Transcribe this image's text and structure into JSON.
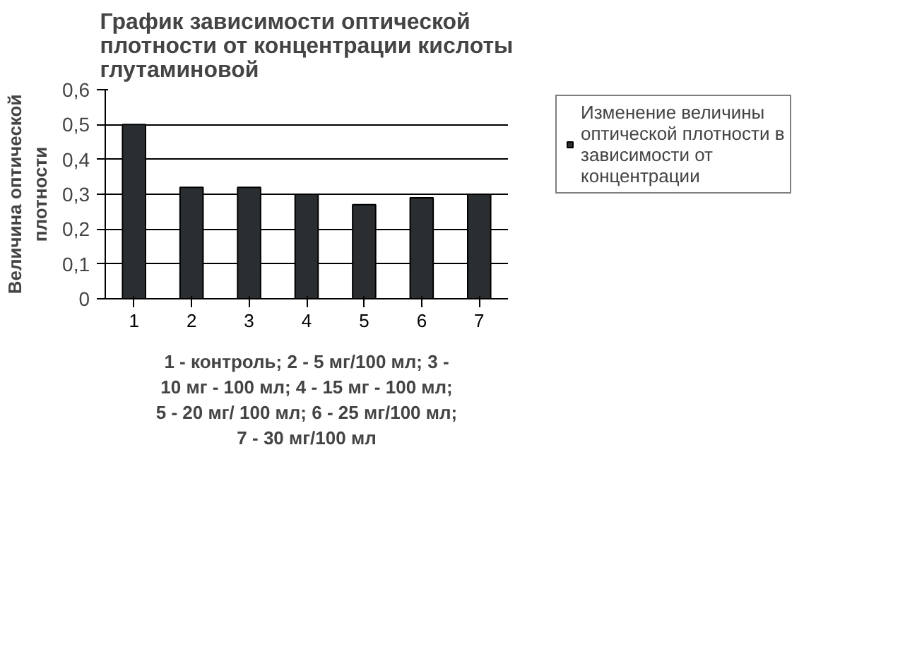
{
  "chart_data": {
    "type": "bar",
    "title": "График зависимости оптической плотности от концентрации кислоты глутаминовой",
    "xlabel": "1 - контроль; 2 - 5 мг/100 мл; 3 - 10 мг - 100 мл; 4 - 15 мг - 100 мл; 5 - 20 мг/ 100 мл; 6 - 25 мг/100 мл; 7 - 30 мг/100 мл",
    "ylabel": "Величина оптической плотности",
    "categories": [
      "1",
      "2",
      "3",
      "4",
      "5",
      "6",
      "7"
    ],
    "series": [
      {
        "name": "Изменение величины оптической плотности в зависимости от концентрации",
        "color": "#2b2e30",
        "values": [
          0.5,
          0.32,
          0.32,
          0.3,
          0.27,
          0.29,
          0.3
        ]
      }
    ],
    "ylim": [
      0,
      0.6
    ],
    "yticks": [
      {
        "value": 0,
        "label": "0"
      },
      {
        "value": 0.1,
        "label": "0,1"
      },
      {
        "value": 0.2,
        "label": "0,2"
      },
      {
        "value": 0.3,
        "label": "0,3"
      },
      {
        "value": 0.4,
        "label": "0,4"
      },
      {
        "value": 0.5,
        "label": "0,5"
      },
      {
        "value": 0.6,
        "label": "0,6"
      }
    ],
    "grid": "y",
    "legend": "right"
  }
}
